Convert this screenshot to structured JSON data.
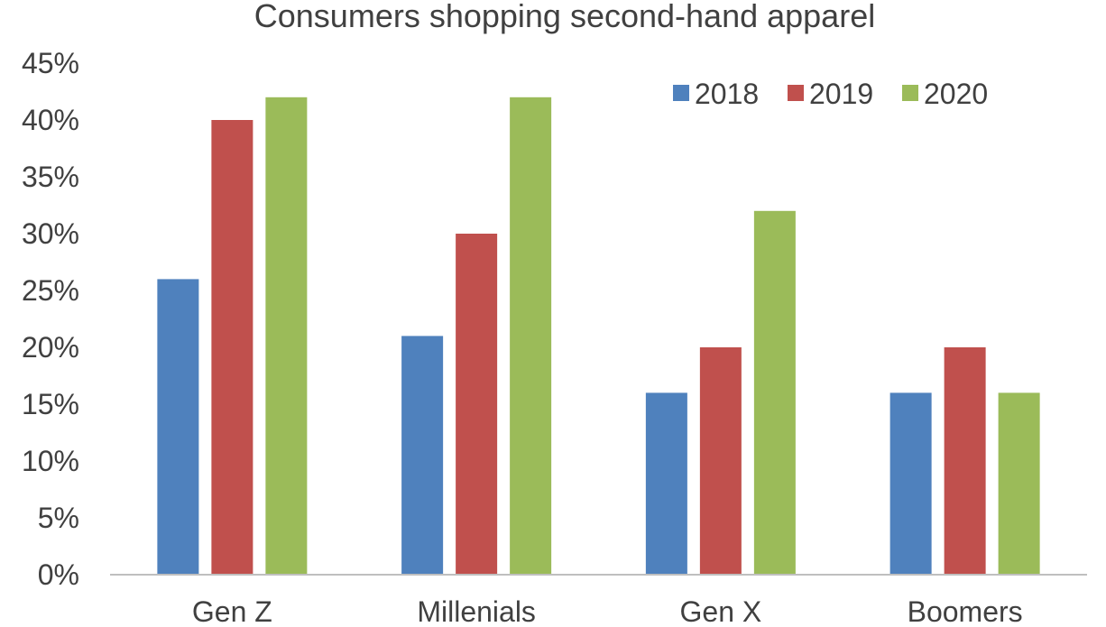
{
  "chart_data": {
    "type": "bar",
    "title": "Consumers shopping second-hand apparel",
    "xlabel": "",
    "ylabel": "",
    "categories": [
      "Gen Z",
      "Millenials",
      "Gen X",
      "Boomers"
    ],
    "series": [
      {
        "name": "2018",
        "color": "#4f81bd",
        "values": [
          26,
          21,
          16,
          16
        ]
      },
      {
        "name": "2019",
        "color": "#c0504d",
        "values": [
          40,
          30,
          20,
          20
        ]
      },
      {
        "name": "2020",
        "color": "#9bbb59",
        "values": [
          42,
          42,
          32,
          16
        ]
      }
    ],
    "ylim": [
      0,
      45
    ],
    "ytick_step": 5,
    "ytick_labels": [
      "0%",
      "5%",
      "10%",
      "15%",
      "20%",
      "25%",
      "30%",
      "35%",
      "40%",
      "45%"
    ],
    "grid": false,
    "legend": "top-right"
  }
}
